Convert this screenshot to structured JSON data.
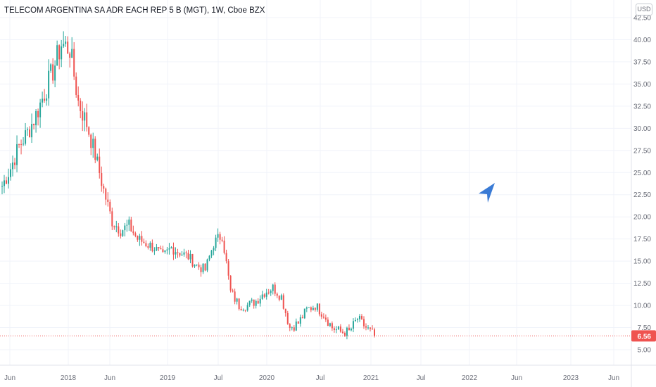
{
  "header": {
    "title": "TELECOM ARGENTINA SA ADR EACH REP 5 B (MGT), 1W, Cboe BZX",
    "currency": "USD"
  },
  "colors": {
    "up": "#26a69a",
    "down": "#ef5350",
    "grid": "#f0f3fa",
    "arrow": "#3a7bd5",
    "last_price": "#ef5350"
  },
  "icons": [
    "cursor-arrow-icon"
  ],
  "chart_data": {
    "type": "candlestick",
    "y_ticks": [
      "5.00",
      "7.50",
      "10.00",
      "12.50",
      "15.00",
      "17.50",
      "20.00",
      "22.50",
      "25.00",
      "27.50",
      "30.00",
      "32.50",
      "35.00",
      "37.50",
      "40.00",
      "42.50"
    ],
    "x_labels": [
      "Jun",
      "2018",
      "Jun",
      "2019",
      "Jul",
      "2020",
      "Jul",
      "2021",
      "Jul",
      "2022",
      "Jun",
      "2023",
      "Jun"
    ],
    "last_price": "6.56",
    "series": [
      {
        "x": [
          "2017-05",
          "2017-06",
          "2017-07",
          "2017-08",
          "2017-09",
          "2017-10",
          "2017-11",
          "2017-12",
          "2018-01",
          "2018-02",
          "2018-03",
          "2018-04",
          "2018-05",
          "2018-06",
          "2018-07",
          "2018-08",
          "2018-09",
          "2018-10",
          "2018-11",
          "2018-12",
          "2019-01",
          "2019-02",
          "2019-03",
          "2019-04",
          "2019-05",
          "2019-06",
          "2019-07",
          "2019-08",
          "2019-09",
          "2019-10",
          "2019-11",
          "2019-12",
          "2020-01",
          "2020-02",
          "2020-03",
          "2020-04",
          "2020-05",
          "2020-06",
          "2020-07",
          "2020-08",
          "2020-09",
          "2020-10",
          "2020-11",
          "2020-12",
          "2021-01"
        ],
        "close": [
          23.5,
          25.5,
          28.0,
          29.5,
          31.5,
          34.0,
          36.5,
          39.5,
          39.0,
          33.0,
          30.5,
          27.0,
          23.0,
          19.5,
          18.5,
          19.0,
          17.5,
          17.0,
          16.5,
          15.5,
          16.5,
          16.0,
          15.5,
          14.5,
          14.0,
          17.0,
          18.0,
          11.5,
          10.0,
          10.0,
          10.5,
          11.5,
          12.0,
          11.0,
          7.5,
          8.0,
          9.5,
          10.0,
          9.0,
          7.5,
          7.0,
          7.0,
          8.5,
          7.5,
          6.56
        ]
      }
    ],
    "grid": true
  }
}
